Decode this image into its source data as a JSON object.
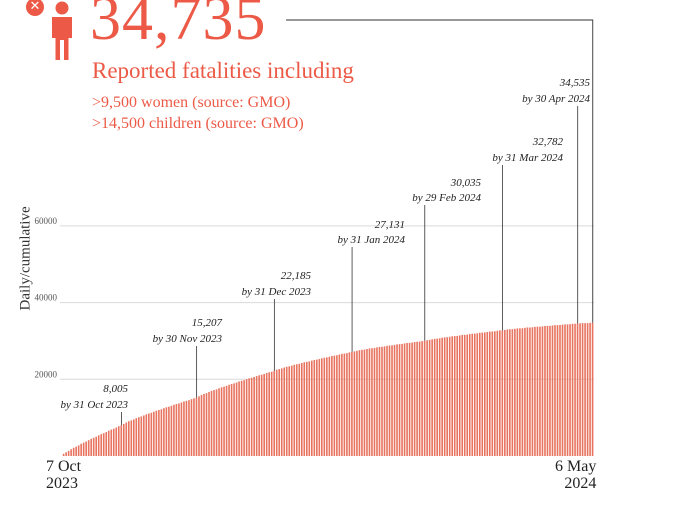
{
  "header": {
    "total_count": "34,735",
    "headline": "Reported fatalities including",
    "sub1": ">9,500 women (source: GMO)",
    "sub2": ">14,500 children (source: GMO)",
    "close_icon": "close-icon",
    "person_icon": "person-icon"
  },
  "colors": {
    "accent": "#ec5a47",
    "bar": "#e8735f",
    "grid": "#d9d9d9"
  },
  "chart_data": {
    "type": "bar",
    "title": "",
    "ylabel": "Daily/cumulative",
    "xlabel": "",
    "ylim": [
      0,
      67000
    ],
    "yticks": [
      20000,
      40000,
      60000
    ],
    "ytick_labels": [
      "20000",
      "40000",
      "60000"
    ],
    "x_start_label": [
      "7 Oct",
      "2023"
    ],
    "x_end_label": [
      "6 May",
      "2024"
    ],
    "grid": true,
    "n_days": 213,
    "anchors": [
      {
        "day": 0,
        "value": 0
      },
      {
        "day": 24,
        "value": 8005
      },
      {
        "day": 54,
        "value": 15207
      },
      {
        "day": 85,
        "value": 22185
      },
      {
        "day": 116,
        "value": 27131
      },
      {
        "day": 145,
        "value": 30035
      },
      {
        "day": 176,
        "value": 32782
      },
      {
        "day": 206,
        "value": 34535
      },
      {
        "day": 212,
        "value": 34735
      }
    ],
    "annotations": [
      {
        "value": "8,005",
        "date": "by 31 Oct 2023"
      },
      {
        "value": "15,207",
        "date": "by 30 Nov 2023"
      },
      {
        "value": "22,185",
        "date": "by 31 Dec 2023"
      },
      {
        "value": "27,131",
        "date": "by 31 Jan 2024"
      },
      {
        "value": "30,035",
        "date": "by 29 Feb 2024"
      },
      {
        "value": "32,782",
        "date": "by 31 Mar 2024"
      },
      {
        "value": "34,535",
        "date": "by 30 Apr 2024"
      }
    ]
  }
}
